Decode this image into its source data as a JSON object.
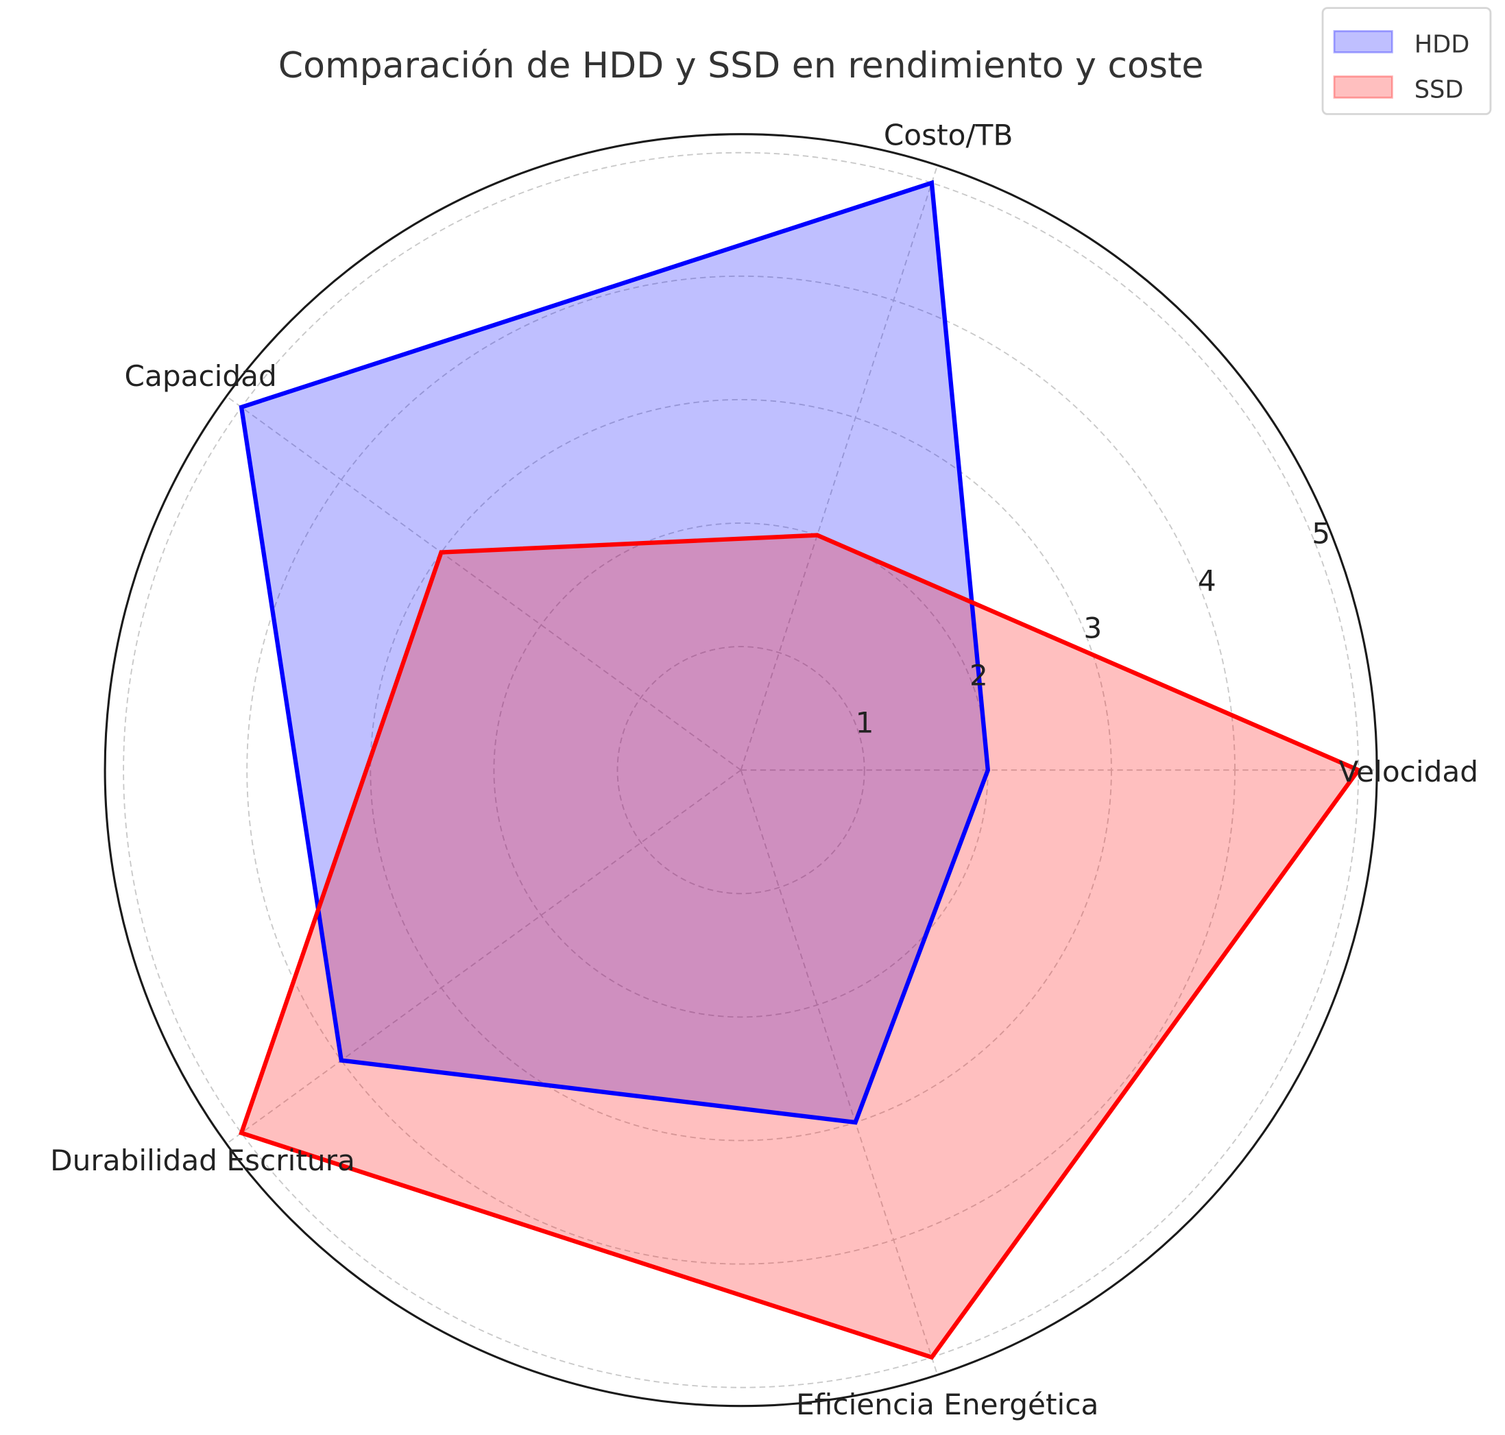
{
  "chart_data": {
    "type": "radar",
    "title": "Comparación de HDD y SSD en rendimiento y coste",
    "categories": [
      "Velocidad",
      "Costo/TB",
      "Capacidad",
      "Durabilidad Escritura",
      "Eficiencia Energética"
    ],
    "radial_ticks": [
      "1",
      "2",
      "3",
      "4",
      "5"
    ],
    "rlim": [
      0,
      5.15
    ],
    "grid": true,
    "legend_position": "top-right",
    "series": [
      {
        "name": "HDD",
        "values": [
          2,
          5,
          5,
          4,
          3
        ],
        "color": "#0000ff"
      },
      {
        "name": "SSD",
        "values": [
          5,
          2,
          3,
          5,
          5
        ],
        "color": "#ff0000"
      }
    ]
  }
}
